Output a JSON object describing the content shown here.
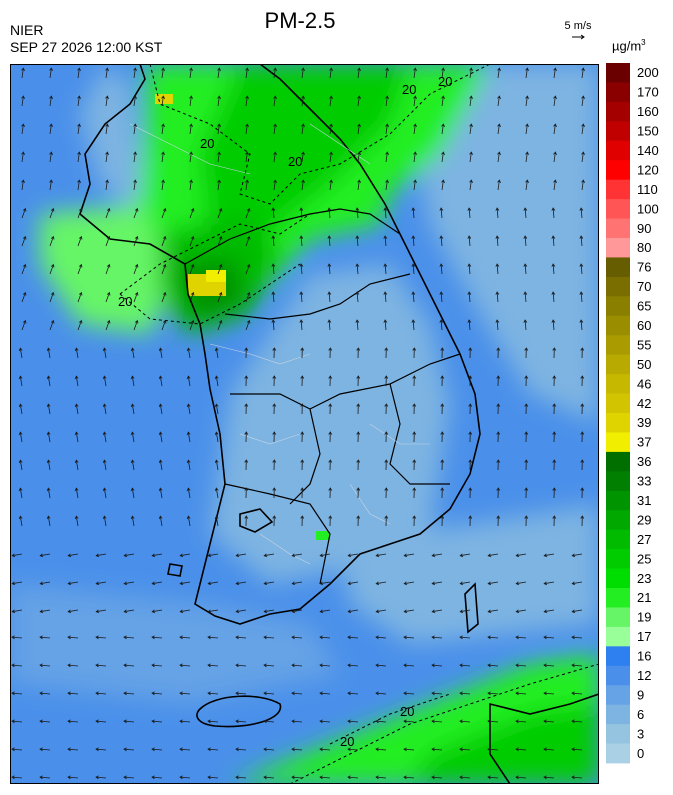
{
  "header": {
    "title": "PM-2.5",
    "agency": "NIER",
    "timestamp": "SEP 27 2026 12:00 KST",
    "wind_reference": "5 m/s",
    "unit_base": "µg/m",
    "unit_exp": "3"
  },
  "contour_label": "20",
  "legend": {
    "levels": [
      {
        "label": "200",
        "color": "#6b0000"
      },
      {
        "label": "170",
        "color": "#8a0000"
      },
      {
        "label": "160",
        "color": "#a50000"
      },
      {
        "label": "150",
        "color": "#c00000"
      },
      {
        "label": "140",
        "color": "#e00000"
      },
      {
        "label": "120",
        "color": "#ff0000"
      },
      {
        "label": "110",
        "color": "#ff3333"
      },
      {
        "label": "100",
        "color": "#ff5555"
      },
      {
        "label": "90",
        "color": "#ff7373"
      },
      {
        "label": "80",
        "color": "#ff9999"
      },
      {
        "label": "76",
        "color": "#665c00"
      },
      {
        "label": "70",
        "color": "#7a6e00"
      },
      {
        "label": "65",
        "color": "#8b7f00"
      },
      {
        "label": "60",
        "color": "#9a8d00"
      },
      {
        "label": "55",
        "color": "#aa9c00"
      },
      {
        "label": "50",
        "color": "#b8aa00"
      },
      {
        "label": "46",
        "color": "#c6b800"
      },
      {
        "label": "42",
        "color": "#d2c400"
      },
      {
        "label": "39",
        "color": "#e0d400"
      },
      {
        "label": "37",
        "color": "#f2ee00"
      },
      {
        "label": "36",
        "color": "#006f00"
      },
      {
        "label": "33",
        "color": "#007f00"
      },
      {
        "label": "31",
        "color": "#009400"
      },
      {
        "label": "29",
        "color": "#00a800"
      },
      {
        "label": "27",
        "color": "#00bb00"
      },
      {
        "label": "25",
        "color": "#00cc00"
      },
      {
        "label": "23",
        "color": "#00dd00"
      },
      {
        "label": "21",
        "color": "#22ee22"
      },
      {
        "label": "19",
        "color": "#66f566"
      },
      {
        "label": "17",
        "color": "#99ff99"
      },
      {
        "label": "16",
        "color": "#2e7ff0"
      },
      {
        "label": "12",
        "color": "#4a90ea"
      },
      {
        "label": "9",
        "color": "#65a2e6"
      },
      {
        "label": "6",
        "color": "#7db4e2"
      },
      {
        "label": "3",
        "color": "#95c4e0"
      },
      {
        "label": "0",
        "color": "#a9d0e4"
      }
    ]
  }
}
